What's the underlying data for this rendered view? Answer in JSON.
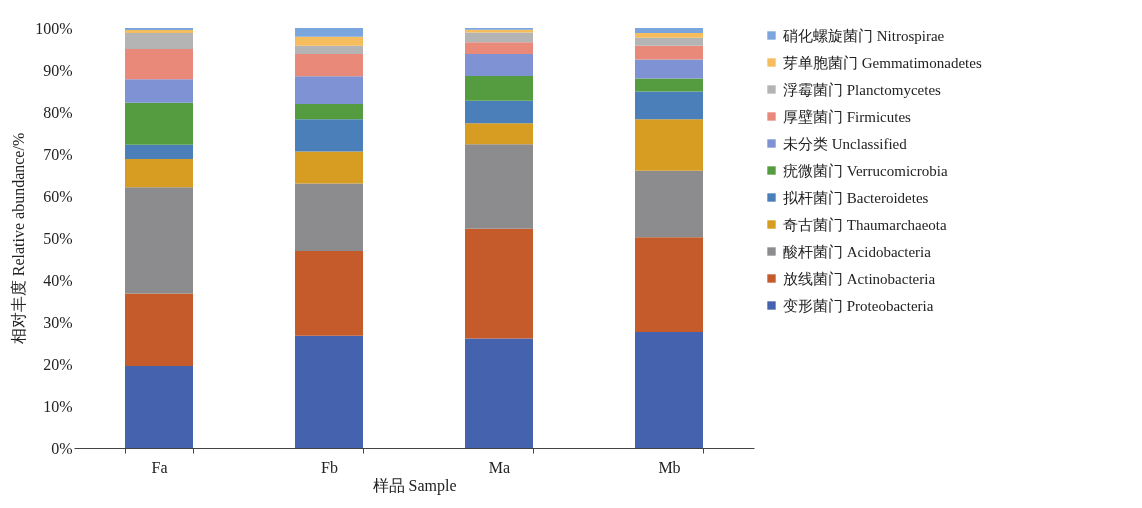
{
  "chart_data": {
    "type": "bar",
    "stacked": true,
    "xlabel": "样品 Sample",
    "ylabel": "相对丰度 Relative abundance/%",
    "categories": [
      "Fa",
      "Fb",
      "Ma",
      "Mb"
    ],
    "ylim": [
      0,
      100
    ],
    "yticks": [
      {
        "value": 0,
        "label": "0%"
      },
      {
        "value": 10,
        "label": "10%"
      },
      {
        "value": 20,
        "label": "20%"
      },
      {
        "value": 30,
        "label": "30%"
      },
      {
        "value": 40,
        "label": "40%"
      },
      {
        "value": 50,
        "label": "50%"
      },
      {
        "value": 60,
        "label": "60%"
      },
      {
        "value": 70,
        "label": "70%"
      },
      {
        "value": 80,
        "label": "80%"
      },
      {
        "value": 90,
        "label": "90%"
      },
      {
        "value": 100,
        "label": "100%"
      }
    ],
    "grid": false,
    "legend": "right",
    "series": [
      {
        "name": "变形菌门 Proteobacteria",
        "color": "#4462ad",
        "values": [
          19.5,
          26.7,
          26.1,
          27.6
        ]
      },
      {
        "name": "放线菌门 Actinobacteria",
        "color": "#c55a2b",
        "values": [
          17.3,
          20.2,
          26.1,
          22.6
        ]
      },
      {
        "name": "酸杆菌门 Acidobacteria",
        "color": "#8c8c8f",
        "values": [
          25.3,
          16.1,
          20.1,
          15.8
        ]
      },
      {
        "name": "奇古菌门 Thaumarchaeota",
        "color": "#d69d22",
        "values": [
          6.7,
          7.6,
          5.0,
          12.3
        ]
      },
      {
        "name": "拟杆菌门 Bacteroidetes",
        "color": "#4a7fba",
        "values": [
          3.4,
          7.7,
          5.4,
          6.6
        ]
      },
      {
        "name": "疣微菌门 Verrucomicrobia",
        "color": "#559b3f",
        "values": [
          10.0,
          3.6,
          5.9,
          3.1
        ]
      },
      {
        "name": "未分类 Unclassified",
        "color": "#7f93d4",
        "values": [
          5.6,
          6.6,
          5.2,
          4.5
        ]
      },
      {
        "name": "厚壁菌门 Firmicutes",
        "color": "#e9897a",
        "values": [
          7.2,
          5.3,
          2.8,
          3.3
        ]
      },
      {
        "name": "浮霉菌门 Planctomycetes",
        "color": "#b4b4b4",
        "values": [
          3.8,
          2.0,
          2.3,
          1.9
        ]
      },
      {
        "name": "芽单胞菌门 Gemmatimonadetes",
        "color": "#f5bd5d",
        "values": [
          0.7,
          2.1,
          0.7,
          1.1
        ]
      },
      {
        "name": "硝化螺旋菌门 Nitrospirae",
        "color": "#7aa6dd",
        "values": [
          0.5,
          2.1,
          0.4,
          1.2
        ]
      }
    ]
  }
}
